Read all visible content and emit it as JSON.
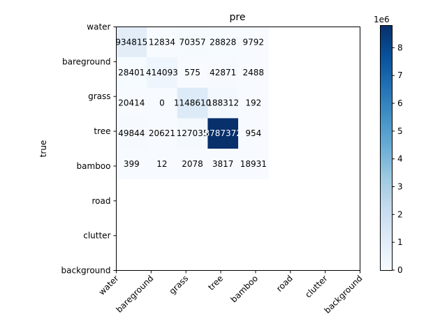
{
  "chart_data": {
    "type": "heatmap",
    "title": "pre",
    "xlabel": "",
    "ylabel": "true",
    "x_categories": [
      "water",
      "bareground",
      "grass",
      "tree",
      "bamboo",
      "road",
      "clutter",
      "background"
    ],
    "y_categories": [
      "water",
      "bareground",
      "grass",
      "tree",
      "bamboo",
      "road",
      "clutter",
      "background"
    ],
    "values": [
      [
        934815,
        12834,
        70357,
        28828,
        9792,
        null,
        null,
        null
      ],
      [
        28401,
        414093,
        575,
        42871,
        2488,
        null,
        null,
        null
      ],
      [
        20414,
        0,
        1148610,
        188312,
        192,
        null,
        null,
        null
      ],
      [
        49844,
        20621,
        127035,
        8787372,
        954,
        null,
        null,
        null
      ],
      [
        399,
        12,
        2078,
        3817,
        18931,
        null,
        null,
        null
      ],
      [
        null,
        null,
        null,
        null,
        null,
        null,
        null,
        null
      ],
      [
        null,
        null,
        null,
        null,
        null,
        null,
        null,
        null
      ],
      [
        null,
        null,
        null,
        null,
        null,
        null,
        null,
        null
      ]
    ],
    "colormap": "Blues",
    "colorbar": {
      "min": 0,
      "max": 8787372,
      "ticks": [
        "0",
        "1",
        "2",
        "3",
        "4",
        "5",
        "6",
        "7",
        "8"
      ],
      "tick_values": [
        0,
        1,
        2,
        3,
        4,
        5,
        6,
        7,
        8
      ],
      "multiplier_label": "1e6",
      "multiplier": 1000000
    }
  }
}
